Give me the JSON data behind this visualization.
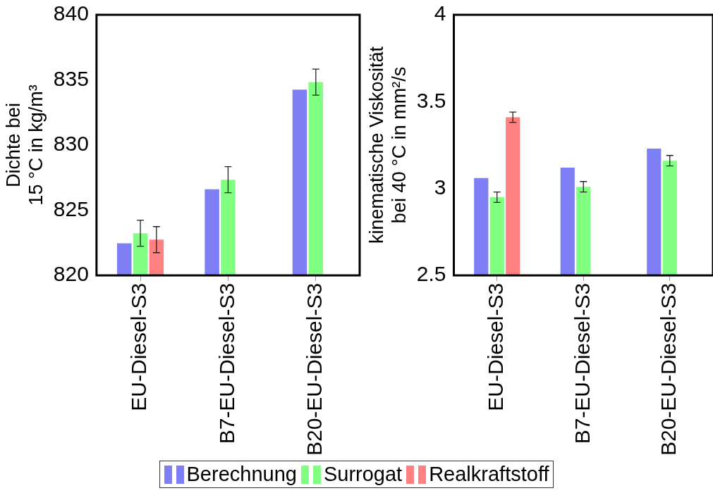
{
  "chart_data": [
    {
      "type": "bar",
      "ylabel": "Dichte bei 15 °C in kg/m³",
      "categories": [
        "EU-Diesel-S3",
        "B7-EU-Diesel-S3",
        "B20-EU-Diesel-S3"
      ],
      "ylim": [
        820,
        840
      ],
      "yticks": [
        820,
        825,
        830,
        835,
        840
      ],
      "grid": false,
      "legend": "bottom",
      "series": [
        {
          "name": "Berechnung",
          "color": "#7f7ff5",
          "values": [
            822.45,
            826.6,
            834.25
          ]
        },
        {
          "name": "Surrogat",
          "color": "#80ff80",
          "values": [
            823.23,
            827.34,
            834.83
          ],
          "errors": [
            1.0,
            1.0,
            1.0
          ]
        },
        {
          "name": "Realkraftstoff",
          "color": "#ff8080",
          "values": [
            822.74,
            null,
            null
          ],
          "errors": [
            1.0,
            null,
            null
          ]
        }
      ]
    },
    {
      "type": "bar",
      "ylabel": "kinematische Viskosität bei 40 °C in mm²/s",
      "categories": [
        "EU-Diesel-S3",
        "B7-EU-Diesel-S3",
        "B20-EU-Diesel-S3"
      ],
      "ylim": [
        2.5,
        4
      ],
      "yticks": [
        2.5,
        3,
        3.5,
        4
      ],
      "grid": false,
      "legend": "bottom",
      "series": [
        {
          "name": "Berechnung",
          "color": "#7f7ff5",
          "values": [
            3.06,
            3.12,
            3.23
          ]
        },
        {
          "name": "Surrogat",
          "color": "#80ff80",
          "values": [
            2.95,
            3.01,
            3.16
          ],
          "errors": [
            0.03,
            0.03,
            0.03
          ]
        },
        {
          "name": "Realkraftstoff",
          "color": "#ff8080",
          "values": [
            3.41,
            null,
            null
          ],
          "errors": [
            0.03,
            null,
            null
          ]
        }
      ]
    }
  ]
}
